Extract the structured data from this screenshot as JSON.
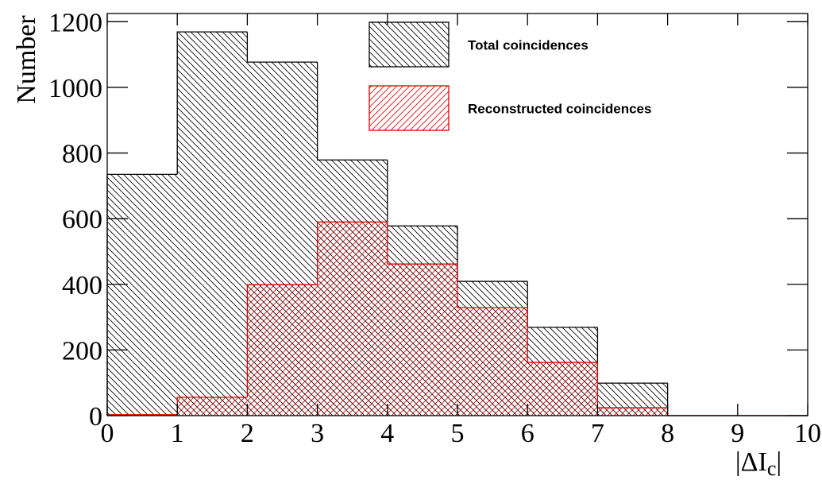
{
  "chart_data": {
    "type": "histogram",
    "ylabel": "Number",
    "xlabel": [
      "|ΔI",
      "c",
      "|"
    ],
    "bins": [
      0,
      1,
      2,
      3,
      4,
      5,
      6,
      7,
      8,
      9,
      10
    ],
    "series": [
      {
        "name": "Total coincidences",
        "color": "#000000",
        "hatch": "back",
        "values": [
          735,
          1169,
          1077,
          779,
          578,
          409,
          269,
          99,
          0,
          0
        ]
      },
      {
        "name": "Reconstructed coincidences",
        "color": "#e00000",
        "hatch": "forward",
        "values": [
          3,
          56,
          399,
          590,
          462,
          329,
          162,
          24,
          0,
          0
        ]
      }
    ],
    "xlim": [
      0,
      10
    ],
    "ylim": [
      0,
      1225
    ],
    "xticks": [
      0,
      1,
      2,
      3,
      4,
      5,
      6,
      7,
      8,
      9,
      10
    ],
    "yticks": [
      0,
      200,
      400,
      600,
      800,
      1000,
      1200
    ],
    "legend": "upper right"
  }
}
